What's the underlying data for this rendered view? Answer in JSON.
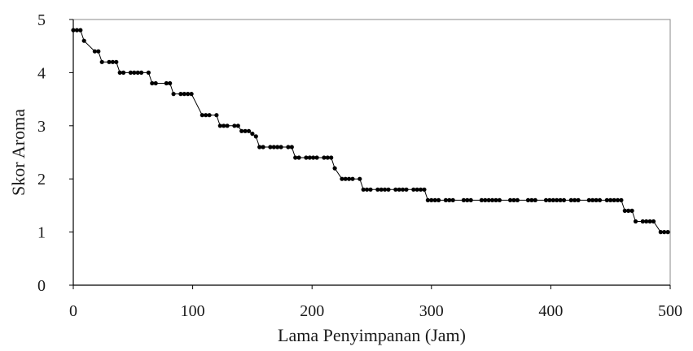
{
  "chart_data": {
    "type": "line",
    "title": "",
    "xlabel": "Lama Penyimpanan (Jam)",
    "ylabel": "Skor Aroma",
    "xlim": [
      0,
      500
    ],
    "ylim": [
      0,
      5
    ],
    "xticks": [
      0,
      100,
      200,
      300,
      400,
      500
    ],
    "yticks": [
      0,
      1,
      2,
      3,
      4,
      5
    ],
    "grid": false,
    "legend": "none",
    "series": [
      {
        "color": "#000000",
        "x": [
          0,
          3,
          6,
          9,
          18,
          21,
          24,
          30,
          33,
          36,
          39,
          42,
          48,
          51,
          54,
          57,
          63,
          66,
          69,
          78,
          81,
          84,
          90,
          93,
          96,
          99,
          108,
          111,
          114,
          120,
          123,
          126,
          129,
          135,
          138,
          141,
          144,
          147,
          150,
          153,
          156,
          159,
          165,
          168,
          171,
          174,
          180,
          183,
          186,
          189,
          195,
          198,
          201,
          204,
          210,
          213,
          216,
          219,
          225,
          228,
          231,
          234,
          240,
          243,
          246,
          249,
          255,
          258,
          261,
          264,
          270,
          273,
          276,
          279,
          285,
          288,
          291,
          294,
          297,
          300,
          303,
          306,
          312,
          315,
          318,
          327,
          330,
          333,
          342,
          345,
          348,
          351,
          354,
          357,
          366,
          369,
          372,
          381,
          384,
          387,
          396,
          399,
          402,
          405,
          408,
          411,
          417,
          420,
          423,
          432,
          435,
          438,
          441,
          447,
          450,
          453,
          456,
          459,
          462,
          465,
          468,
          471,
          477,
          480,
          483,
          486,
          492,
          495,
          498
        ],
        "y": [
          4.8,
          4.8,
          4.8,
          4.6,
          4.4,
          4.4,
          4.2,
          4.2,
          4.2,
          4.2,
          4.0,
          4.0,
          4.0,
          4.0,
          4.0,
          4.0,
          4.0,
          3.8,
          3.8,
          3.8,
          3.8,
          3.6,
          3.6,
          3.6,
          3.6,
          3.6,
          3.2,
          3.2,
          3.2,
          3.2,
          3.0,
          3.0,
          3.0,
          3.0,
          3.0,
          2.9,
          2.9,
          2.9,
          2.85,
          2.8,
          2.6,
          2.6,
          2.6,
          2.6,
          2.6,
          2.6,
          2.6,
          2.6,
          2.4,
          2.4,
          2.4,
          2.4,
          2.4,
          2.4,
          2.4,
          2.4,
          2.4,
          2.2,
          2.0,
          2.0,
          2.0,
          2.0,
          2.0,
          1.8,
          1.8,
          1.8,
          1.8,
          1.8,
          1.8,
          1.8,
          1.8,
          1.8,
          1.8,
          1.8,
          1.8,
          1.8,
          1.8,
          1.8,
          1.6,
          1.6,
          1.6,
          1.6,
          1.6,
          1.6,
          1.6,
          1.6,
          1.6,
          1.6,
          1.6,
          1.6,
          1.6,
          1.6,
          1.6,
          1.6,
          1.6,
          1.6,
          1.6,
          1.6,
          1.6,
          1.6,
          1.6,
          1.6,
          1.6,
          1.6,
          1.6,
          1.6,
          1.6,
          1.6,
          1.6,
          1.6,
          1.6,
          1.6,
          1.6,
          1.6,
          1.6,
          1.6,
          1.6,
          1.6,
          1.4,
          1.4,
          1.4,
          1.2,
          1.2,
          1.2,
          1.2,
          1.2,
          1.0,
          1.0,
          1.0
        ]
      }
    ]
  }
}
